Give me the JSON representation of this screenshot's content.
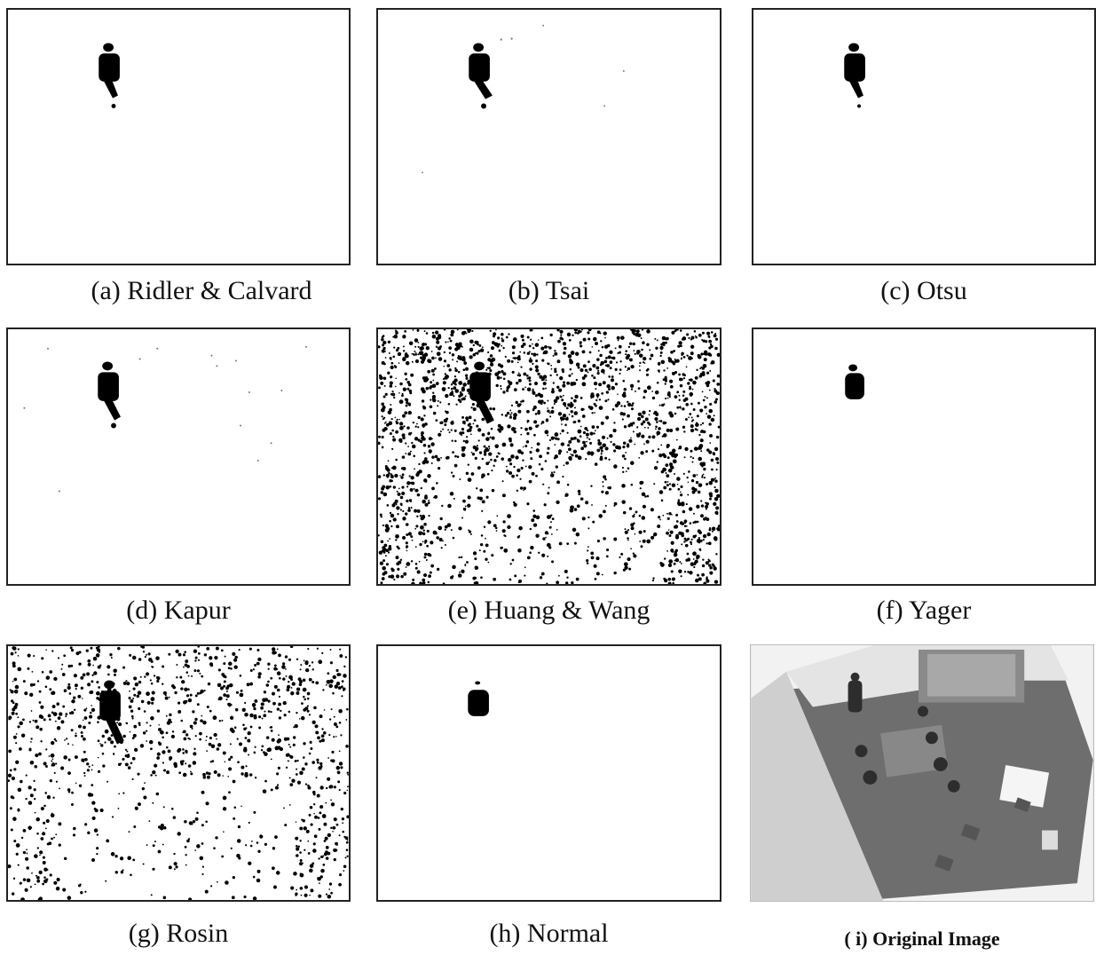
{
  "figure": {
    "panels": [
      {
        "key": "a",
        "caption": "(a) Ridler & Calvard",
        "noise": "none"
      },
      {
        "key": "b",
        "caption": "(b) Tsai",
        "noise": "light"
      },
      {
        "key": "c",
        "caption": "(c) Otsu",
        "noise": "none"
      },
      {
        "key": "d",
        "caption": "(d) Kapur",
        "noise": "sparse"
      },
      {
        "key": "e",
        "caption": "(e) Huang & Wang",
        "noise": "heavy"
      },
      {
        "key": "f",
        "caption": "(f) Yager",
        "noise": "none"
      },
      {
        "key": "g",
        "caption": "(g) Rosin",
        "noise": "heavy"
      },
      {
        "key": "h",
        "caption": "(h) Normal",
        "noise": "none"
      },
      {
        "key": "i",
        "caption": "( i) Original Image",
        "noise": "photo"
      }
    ]
  }
}
